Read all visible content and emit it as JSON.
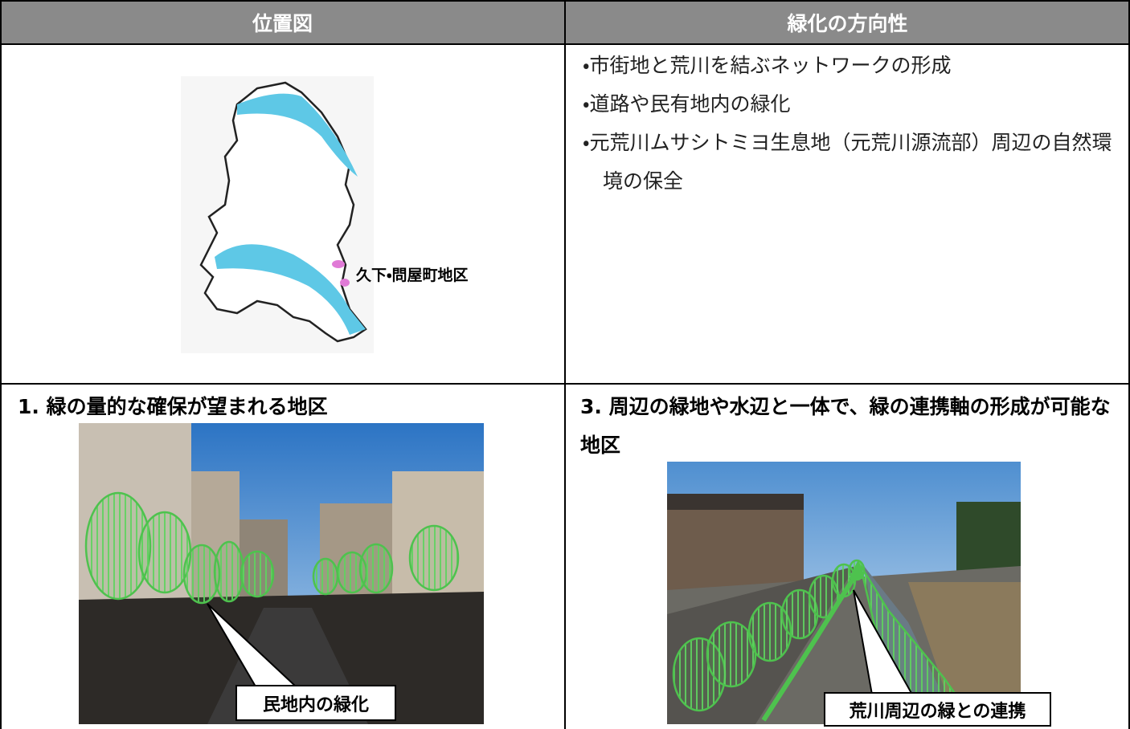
{
  "table": {
    "headers": [
      "位置図",
      "緑化の方向性"
    ],
    "map_label": "久下・問屋町地区",
    "bullets": [
      "・市街地と荒川を結ぶネットワークの形成",
      "・道路や民有地内の緑化",
      "・元荒川ムサシトミヨ生息地（元荒川源流部）周辺の自然環境の保全"
    ],
    "sections": [
      {
        "heading": "1. 緑の量的な確保が望まれる地区",
        "callout": "民地内の緑化"
      },
      {
        "heading": "3. 周辺の緑地や水辺と一体で、緑の連携軸の形成が可能な地区",
        "callout": "荒川周辺の緑との連携"
      }
    ]
  }
}
